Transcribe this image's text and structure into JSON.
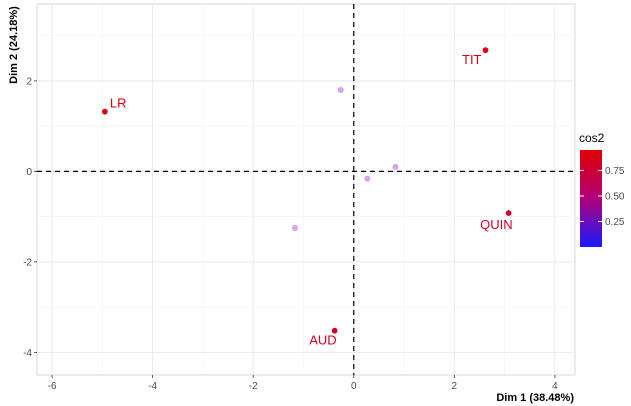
{
  "chart_data": {
    "type": "scatter",
    "title": "",
    "xlabel": "Dim 1 (38.48%)",
    "ylabel": "Dim 2 (24.18%)",
    "xlim": [
      -6.3,
      4.4
    ],
    "ylim": [
      -4.5,
      3.7
    ],
    "x_ticks": [
      -6,
      -4,
      -2,
      0,
      2,
      4
    ],
    "y_ticks": [
      -4,
      -2,
      0,
      2
    ],
    "x_tick_labels": [
      "-6",
      "-4",
      "-2",
      "0",
      "2",
      "4"
    ],
    "y_tick_labels": [
      "-4",
      "-2",
      "0",
      "2"
    ],
    "grid": true,
    "reference_lines": {
      "x": 0,
      "y": 0,
      "style": "dashed"
    },
    "colors": {
      "low": "#1a1aff",
      "high": "#e00000",
      "mid": "#b0007a"
    },
    "points": [
      {
        "label": "LR",
        "x": -4.95,
        "y": 1.32,
        "cos2": 0.92
      },
      {
        "label": "TIT",
        "x": 2.62,
        "y": 2.68,
        "cos2": 0.85
      },
      {
        "label": "QUIN",
        "x": 3.08,
        "y": -0.92,
        "cos2": 0.8
      },
      {
        "label": "AUD",
        "x": -0.38,
        "y": -3.52,
        "cos2": 0.82
      },
      {
        "label": "",
        "x": -0.26,
        "y": 1.8,
        "cos2": 0.06
      },
      {
        "label": "",
        "x": 0.83,
        "y": 0.1,
        "cos2": 0.06
      },
      {
        "label": "",
        "x": 0.27,
        "y": -0.16,
        "cos2": 0.12
      },
      {
        "label": "",
        "x": -1.17,
        "y": -1.25,
        "cos2": 0.05
      }
    ],
    "legend": {
      "title": "cos2",
      "position": "right",
      "ticks": [
        0.25,
        0.5,
        0.75
      ],
      "tick_labels": [
        "0.25",
        "0.50",
        "0.75"
      ],
      "range": [
        0.0,
        0.95
      ]
    }
  }
}
